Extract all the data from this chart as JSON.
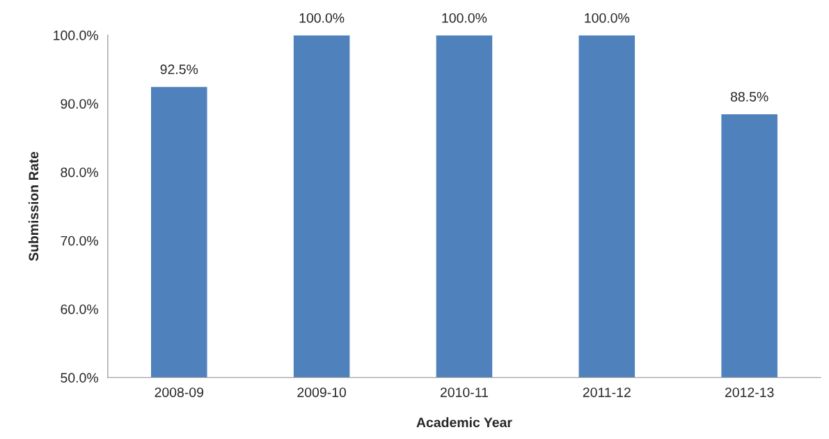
{
  "chart_data": {
    "type": "bar",
    "xlabel": "Academic Year",
    "ylabel": "Submission Rate",
    "categories": [
      "2008-09",
      "2009-10",
      "2010-11",
      "2011-12",
      "2012-13"
    ],
    "values": [
      92.5,
      100,
      100,
      100,
      88.5
    ],
    "value_labels": [
      "92.5%",
      "100.0%",
      "100.0%",
      "100.0%",
      "88.5%"
    ],
    "color": "#4f81bd",
    "ylim": [
      50,
      100
    ],
    "yticks": [
      {
        "value": 50,
        "label": "50.0%"
      },
      {
        "value": 60,
        "label": "60.0%"
      },
      {
        "value": 70,
        "label": "70.0%"
      },
      {
        "value": 80,
        "label": "80.0%"
      },
      {
        "value": 90,
        "label": "90.0%"
      },
      {
        "value": 100,
        "label": "100.0%"
      }
    ],
    "grid": false,
    "legend": false
  }
}
